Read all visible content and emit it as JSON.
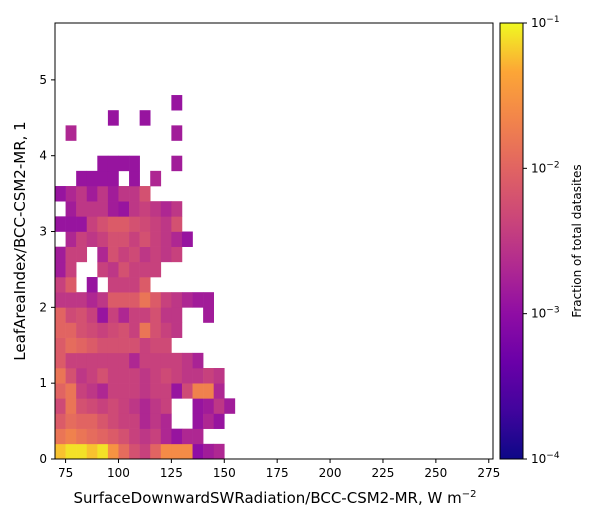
{
  "chart_data": {
    "type": "heatmap",
    "xlabel": "SurfaceDownwardSWRadiation/BCC-CSM2-MR,  W m",
    "xlabel_sup": "−2",
    "ylabel": "LeafAreaIndex/BCC-CSM2-MR,  1",
    "xlim": [
      70,
      277
    ],
    "ylim": [
      0,
      5.75
    ],
    "x_ticks": [
      "75",
      "100",
      "125",
      "150",
      "175",
      "200",
      "225",
      "250",
      "275"
    ],
    "y_ticks": [
      "0",
      "1",
      "2",
      "3",
      "4",
      "5"
    ],
    "bin_width_x": 5,
    "bin_height_y": 0.2,
    "colorbar": {
      "label": "Fraction of total datasites",
      "scale": "log",
      "range": [
        0.0001,
        0.1
      ],
      "ticks": [
        {
          "base": "10",
          "exp": "−1",
          "value": 0.1
        },
        {
          "base": "10",
          "exp": "−2",
          "value": 0.01
        },
        {
          "base": "10",
          "exp": "−3",
          "value": 0.001
        },
        {
          "base": "10",
          "exp": "−4",
          "value": 0.0001
        }
      ],
      "colormap": "plasma"
    },
    "cells": [
      {
        "x": 70,
        "y": 0.0,
        "v": 0.06
      },
      {
        "x": 75,
        "y": 0.0,
        "v": 0.08
      },
      {
        "x": 80,
        "y": 0.0,
        "v": 0.08
      },
      {
        "x": 85,
        "y": 0.0,
        "v": 0.06
      },
      {
        "x": 90,
        "y": 0.0,
        "v": 0.08
      },
      {
        "x": 95,
        "y": 0.0,
        "v": 0.03
      },
      {
        "x": 100,
        "y": 0.0,
        "v": 0.012
      },
      {
        "x": 105,
        "y": 0.0,
        "v": 0.006
      },
      {
        "x": 110,
        "y": 0.0,
        "v": 0.004
      },
      {
        "x": 115,
        "y": 0.0,
        "v": 0.01
      },
      {
        "x": 120,
        "y": 0.0,
        "v": 0.025
      },
      {
        "x": 125,
        "y": 0.0,
        "v": 0.025
      },
      {
        "x": 130,
        "y": 0.0,
        "v": 0.025
      },
      {
        "x": 135,
        "y": 0.0,
        "v": 0.001
      },
      {
        "x": 140,
        "y": 0.0,
        "v": 0.0015
      },
      {
        "x": 145,
        "y": 0.0,
        "v": 0.002
      },
      {
        "x": 70,
        "y": 0.2,
        "v": 0.015
      },
      {
        "x": 75,
        "y": 0.2,
        "v": 0.02
      },
      {
        "x": 80,
        "y": 0.2,
        "v": 0.015
      },
      {
        "x": 85,
        "y": 0.2,
        "v": 0.012
      },
      {
        "x": 90,
        "y": 0.2,
        "v": 0.01
      },
      {
        "x": 95,
        "y": 0.2,
        "v": 0.008
      },
      {
        "x": 100,
        "y": 0.2,
        "v": 0.006
      },
      {
        "x": 105,
        "y": 0.2,
        "v": 0.004
      },
      {
        "x": 110,
        "y": 0.2,
        "v": 0.003
      },
      {
        "x": 115,
        "y": 0.2,
        "v": 0.004
      },
      {
        "x": 120,
        "y": 0.2,
        "v": 0.002
      },
      {
        "x": 125,
        "y": 0.2,
        "v": 0.0012
      },
      {
        "x": 130,
        "y": 0.2,
        "v": 0.002
      },
      {
        "x": 135,
        "y": 0.2,
        "v": 0.002
      },
      {
        "x": 70,
        "y": 0.4,
        "v": 0.008
      },
      {
        "x": 75,
        "y": 0.4,
        "v": 0.012
      },
      {
        "x": 80,
        "y": 0.4,
        "v": 0.01
      },
      {
        "x": 85,
        "y": 0.4,
        "v": 0.01
      },
      {
        "x": 90,
        "y": 0.4,
        "v": 0.007
      },
      {
        "x": 95,
        "y": 0.4,
        "v": 0.005
      },
      {
        "x": 100,
        "y": 0.4,
        "v": 0.004
      },
      {
        "x": 105,
        "y": 0.4,
        "v": 0.004
      },
      {
        "x": 110,
        "y": 0.4,
        "v": 0.002
      },
      {
        "x": 115,
        "y": 0.4,
        "v": 0.003
      },
      {
        "x": 120,
        "y": 0.4,
        "v": 0.002
      },
      {
        "x": 135,
        "y": 0.4,
        "v": 0.0012
      },
      {
        "x": 140,
        "y": 0.4,
        "v": 0.002
      },
      {
        "x": 145,
        "y": 0.4,
        "v": 0.0012
      },
      {
        "x": 70,
        "y": 0.6,
        "v": 0.005
      },
      {
        "x": 75,
        "y": 0.6,
        "v": 0.015
      },
      {
        "x": 80,
        "y": 0.6,
        "v": 0.006
      },
      {
        "x": 85,
        "y": 0.6,
        "v": 0.005
      },
      {
        "x": 90,
        "y": 0.6,
        "v": 0.004
      },
      {
        "x": 95,
        "y": 0.6,
        "v": 0.005
      },
      {
        "x": 100,
        "y": 0.6,
        "v": 0.004
      },
      {
        "x": 105,
        "y": 0.6,
        "v": 0.003
      },
      {
        "x": 110,
        "y": 0.6,
        "v": 0.002
      },
      {
        "x": 115,
        "y": 0.6,
        "v": 0.003
      },
      {
        "x": 120,
        "y": 0.6,
        "v": 0.004
      },
      {
        "x": 135,
        "y": 0.6,
        "v": 0.0012
      },
      {
        "x": 140,
        "y": 0.6,
        "v": 0.0015
      },
      {
        "x": 145,
        "y": 0.6,
        "v": 0.003
      },
      {
        "x": 150,
        "y": 0.6,
        "v": 0.0015
      },
      {
        "x": 70,
        "y": 0.8,
        "v": 0.01
      },
      {
        "x": 75,
        "y": 0.8,
        "v": 0.015
      },
      {
        "x": 80,
        "y": 0.8,
        "v": 0.004
      },
      {
        "x": 85,
        "y": 0.8,
        "v": 0.003
      },
      {
        "x": 90,
        "y": 0.8,
        "v": 0.002
      },
      {
        "x": 95,
        "y": 0.8,
        "v": 0.004
      },
      {
        "x": 100,
        "y": 0.8,
        "v": 0.004
      },
      {
        "x": 105,
        "y": 0.8,
        "v": 0.004
      },
      {
        "x": 110,
        "y": 0.8,
        "v": 0.003
      },
      {
        "x": 115,
        "y": 0.8,
        "v": 0.004
      },
      {
        "x": 120,
        "y": 0.8,
        "v": 0.004
      },
      {
        "x": 125,
        "y": 0.8,
        "v": 0.0012
      },
      {
        "x": 130,
        "y": 0.8,
        "v": 0.005
      },
      {
        "x": 135,
        "y": 0.8,
        "v": 0.02
      },
      {
        "x": 140,
        "y": 0.8,
        "v": 0.02
      },
      {
        "x": 145,
        "y": 0.8,
        "v": 0.002
      },
      {
        "x": 70,
        "y": 1.0,
        "v": 0.015
      },
      {
        "x": 75,
        "y": 1.0,
        "v": 0.006
      },
      {
        "x": 80,
        "y": 1.0,
        "v": 0.003
      },
      {
        "x": 85,
        "y": 1.0,
        "v": 0.004
      },
      {
        "x": 90,
        "y": 1.0,
        "v": 0.006
      },
      {
        "x": 95,
        "y": 1.0,
        "v": 0.004
      },
      {
        "x": 100,
        "y": 1.0,
        "v": 0.004
      },
      {
        "x": 105,
        "y": 1.0,
        "v": 0.004
      },
      {
        "x": 110,
        "y": 1.0,
        "v": 0.003
      },
      {
        "x": 115,
        "y": 1.0,
        "v": 0.004
      },
      {
        "x": 120,
        "y": 1.0,
        "v": 0.005
      },
      {
        "x": 125,
        "y": 1.0,
        "v": 0.004
      },
      {
        "x": 130,
        "y": 1.0,
        "v": 0.003
      },
      {
        "x": 135,
        "y": 1.0,
        "v": 0.003
      },
      {
        "x": 140,
        "y": 1.0,
        "v": 0.004
      },
      {
        "x": 145,
        "y": 1.0,
        "v": 0.003
      },
      {
        "x": 70,
        "y": 1.2,
        "v": 0.008
      },
      {
        "x": 75,
        "y": 1.2,
        "v": 0.004
      },
      {
        "x": 80,
        "y": 1.2,
        "v": 0.004
      },
      {
        "x": 85,
        "y": 1.2,
        "v": 0.004
      },
      {
        "x": 90,
        "y": 1.2,
        "v": 0.004
      },
      {
        "x": 95,
        "y": 1.2,
        "v": 0.004
      },
      {
        "x": 100,
        "y": 1.2,
        "v": 0.004
      },
      {
        "x": 105,
        "y": 1.2,
        "v": 0.002
      },
      {
        "x": 110,
        "y": 1.2,
        "v": 0.004
      },
      {
        "x": 115,
        "y": 1.2,
        "v": 0.004
      },
      {
        "x": 120,
        "y": 1.2,
        "v": 0.004
      },
      {
        "x": 125,
        "y": 1.2,
        "v": 0.004
      },
      {
        "x": 130,
        "y": 1.2,
        "v": 0.003
      },
      {
        "x": 135,
        "y": 1.2,
        "v": 0.0018
      },
      {
        "x": 70,
        "y": 1.4,
        "v": 0.008
      },
      {
        "x": 75,
        "y": 1.4,
        "v": 0.012
      },
      {
        "x": 80,
        "y": 1.4,
        "v": 0.01
      },
      {
        "x": 85,
        "y": 1.4,
        "v": 0.008
      },
      {
        "x": 90,
        "y": 1.4,
        "v": 0.006
      },
      {
        "x": 95,
        "y": 1.4,
        "v": 0.006
      },
      {
        "x": 100,
        "y": 1.4,
        "v": 0.006
      },
      {
        "x": 105,
        "y": 1.4,
        "v": 0.006
      },
      {
        "x": 110,
        "y": 1.4,
        "v": 0.004
      },
      {
        "x": 115,
        "y": 1.4,
        "v": 0.005
      },
      {
        "x": 120,
        "y": 1.4,
        "v": 0.005
      },
      {
        "x": 70,
        "y": 1.6,
        "v": 0.01
      },
      {
        "x": 75,
        "y": 1.6,
        "v": 0.01
      },
      {
        "x": 80,
        "y": 1.6,
        "v": 0.006
      },
      {
        "x": 85,
        "y": 1.6,
        "v": 0.005
      },
      {
        "x": 90,
        "y": 1.6,
        "v": 0.004
      },
      {
        "x": 95,
        "y": 1.6,
        "v": 0.005
      },
      {
        "x": 100,
        "y": 1.6,
        "v": 0.006
      },
      {
        "x": 105,
        "y": 1.6,
        "v": 0.004
      },
      {
        "x": 110,
        "y": 1.6,
        "v": 0.015
      },
      {
        "x": 115,
        "y": 1.6,
        "v": 0.006
      },
      {
        "x": 120,
        "y": 1.6,
        "v": 0.004
      },
      {
        "x": 125,
        "y": 1.6,
        "v": 0.003
      },
      {
        "x": 70,
        "y": 1.8,
        "v": 0.01
      },
      {
        "x": 75,
        "y": 1.8,
        "v": 0.005
      },
      {
        "x": 80,
        "y": 1.8,
        "v": 0.006
      },
      {
        "x": 85,
        "y": 1.8,
        "v": 0.004
      },
      {
        "x": 90,
        "y": 1.8,
        "v": 0.0012
      },
      {
        "x": 95,
        "y": 1.8,
        "v": 0.004
      },
      {
        "x": 100,
        "y": 1.8,
        "v": 0.002
      },
      {
        "x": 105,
        "y": 1.8,
        "v": 0.004
      },
      {
        "x": 110,
        "y": 1.8,
        "v": 0.004
      },
      {
        "x": 115,
        "y": 1.8,
        "v": 0.006
      },
      {
        "x": 120,
        "y": 1.8,
        "v": 0.003
      },
      {
        "x": 125,
        "y": 1.8,
        "v": 0.003
      },
      {
        "x": 140,
        "y": 1.8,
        "v": 0.0015
      },
      {
        "x": 70,
        "y": 2.0,
        "v": 0.003
      },
      {
        "x": 75,
        "y": 2.0,
        "v": 0.003
      },
      {
        "x": 80,
        "y": 2.0,
        "v": 0.003
      },
      {
        "x": 85,
        "y": 2.0,
        "v": 0.002
      },
      {
        "x": 90,
        "y": 2.0,
        "v": 0.003
      },
      {
        "x": 95,
        "y": 2.0,
        "v": 0.008
      },
      {
        "x": 100,
        "y": 2.0,
        "v": 0.008
      },
      {
        "x": 105,
        "y": 2.0,
        "v": 0.008
      },
      {
        "x": 110,
        "y": 2.0,
        "v": 0.015
      },
      {
        "x": 115,
        "y": 2.0,
        "v": 0.008
      },
      {
        "x": 120,
        "y": 2.0,
        "v": 0.004
      },
      {
        "x": 125,
        "y": 2.0,
        "v": 0.003
      },
      {
        "x": 130,
        "y": 2.0,
        "v": 0.002
      },
      {
        "x": 135,
        "y": 2.0,
        "v": 0.0015
      },
      {
        "x": 140,
        "y": 2.0,
        "v": 0.0015
      },
      {
        "x": 70,
        "y": 2.2,
        "v": 0.004
      },
      {
        "x": 75,
        "y": 2.2,
        "v": 0.008
      },
      {
        "x": 85,
        "y": 2.2,
        "v": 0.0012
      },
      {
        "x": 95,
        "y": 2.2,
        "v": 0.004
      },
      {
        "x": 100,
        "y": 2.2,
        "v": 0.004
      },
      {
        "x": 105,
        "y": 2.2,
        "v": 0.004
      },
      {
        "x": 110,
        "y": 2.2,
        "v": 0.008
      },
      {
        "x": 70,
        "y": 2.4,
        "v": 0.0015
      },
      {
        "x": 75,
        "y": 2.4,
        "v": 0.004
      },
      {
        "x": 90,
        "y": 2.4,
        "v": 0.004
      },
      {
        "x": 95,
        "y": 2.4,
        "v": 0.003
      },
      {
        "x": 100,
        "y": 2.4,
        "v": 0.006
      },
      {
        "x": 105,
        "y": 2.4,
        "v": 0.004
      },
      {
        "x": 110,
        "y": 2.4,
        "v": 0.004
      },
      {
        "x": 115,
        "y": 2.4,
        "v": 0.004
      },
      {
        "x": 70,
        "y": 2.6,
        "v": 0.0015
      },
      {
        "x": 75,
        "y": 2.6,
        "v": 0.004
      },
      {
        "x": 80,
        "y": 2.6,
        "v": 0.004
      },
      {
        "x": 90,
        "y": 2.6,
        "v": 0.002
      },
      {
        "x": 95,
        "y": 2.6,
        "v": 0.006
      },
      {
        "x": 100,
        "y": 2.6,
        "v": 0.004
      },
      {
        "x": 105,
        "y": 2.6,
        "v": 0.005
      },
      {
        "x": 110,
        "y": 2.6,
        "v": 0.003
      },
      {
        "x": 115,
        "y": 2.6,
        "v": 0.004
      },
      {
        "x": 120,
        "y": 2.6,
        "v": 0.003
      },
      {
        "x": 125,
        "y": 2.6,
        "v": 0.004
      },
      {
        "x": 75,
        "y": 2.8,
        "v": 0.002
      },
      {
        "x": 80,
        "y": 2.8,
        "v": 0.004
      },
      {
        "x": 85,
        "y": 2.8,
        "v": 0.003
      },
      {
        "x": 90,
        "y": 2.8,
        "v": 0.004
      },
      {
        "x": 95,
        "y": 2.8,
        "v": 0.006
      },
      {
        "x": 100,
        "y": 2.8,
        "v": 0.006
      },
      {
        "x": 105,
        "y": 2.8,
        "v": 0.004
      },
      {
        "x": 110,
        "y": 2.8,
        "v": 0.006
      },
      {
        "x": 115,
        "y": 2.8,
        "v": 0.004
      },
      {
        "x": 120,
        "y": 2.8,
        "v": 0.003
      },
      {
        "x": 125,
        "y": 2.8,
        "v": 0.002
      },
      {
        "x": 130,
        "y": 2.8,
        "v": 0.0012
      },
      {
        "x": 70,
        "y": 3.0,
        "v": 0.0012
      },
      {
        "x": 75,
        "y": 3.0,
        "v": 0.0012
      },
      {
        "x": 80,
        "y": 3.0,
        "v": 0.0012
      },
      {
        "x": 85,
        "y": 3.0,
        "v": 0.004
      },
      {
        "x": 90,
        "y": 3.0,
        "v": 0.006
      },
      {
        "x": 95,
        "y": 3.0,
        "v": 0.008
      },
      {
        "x": 100,
        "y": 3.0,
        "v": 0.008
      },
      {
        "x": 105,
        "y": 3.0,
        "v": 0.006
      },
      {
        "x": 110,
        "y": 3.0,
        "v": 0.005
      },
      {
        "x": 115,
        "y": 3.0,
        "v": 0.004
      },
      {
        "x": 120,
        "y": 3.0,
        "v": 0.003
      },
      {
        "x": 125,
        "y": 3.0,
        "v": 0.006
      },
      {
        "x": 75,
        "y": 3.2,
        "v": 0.0015
      },
      {
        "x": 80,
        "y": 3.2,
        "v": 0.003
      },
      {
        "x": 85,
        "y": 3.2,
        "v": 0.003
      },
      {
        "x": 90,
        "y": 3.2,
        "v": 0.003
      },
      {
        "x": 95,
        "y": 3.2,
        "v": 0.0015
      },
      {
        "x": 100,
        "y": 3.2,
        "v": 0.0012
      },
      {
        "x": 105,
        "y": 3.2,
        "v": 0.003
      },
      {
        "x": 110,
        "y": 3.2,
        "v": 0.004
      },
      {
        "x": 115,
        "y": 3.2,
        "v": 0.003
      },
      {
        "x": 120,
        "y": 3.2,
        "v": 0.002
      },
      {
        "x": 125,
        "y": 3.2,
        "v": 0.003
      },
      {
        "x": 75,
        "y": 3.4,
        "v": 0.002
      },
      {
        "x": 80,
        "y": 3.4,
        "v": 0.003
      },
      {
        "x": 85,
        "y": 3.4,
        "v": 0.0015
      },
      {
        "x": 90,
        "y": 3.4,
        "v": 0.003
      },
      {
        "x": 95,
        "y": 3.4,
        "v": 0.0015
      },
      {
        "x": 100,
        "y": 3.4,
        "v": 0.003
      },
      {
        "x": 105,
        "y": 3.4,
        "v": 0.003
      },
      {
        "x": 110,
        "y": 3.4,
        "v": 0.006
      },
      {
        "x": 80,
        "y": 3.6,
        "v": 0.0012
      },
      {
        "x": 85,
        "y": 3.6,
        "v": 0.0012
      },
      {
        "x": 90,
        "y": 3.6,
        "v": 0.0012
      },
      {
        "x": 95,
        "y": 3.6,
        "v": 0.0012
      },
      {
        "x": 105,
        "y": 3.6,
        "v": 0.0012
      },
      {
        "x": 115,
        "y": 3.6,
        "v": 0.002
      },
      {
        "x": 90,
        "y": 3.8,
        "v": 0.0012
      },
      {
        "x": 95,
        "y": 3.8,
        "v": 0.0012
      },
      {
        "x": 100,
        "y": 3.8,
        "v": 0.0012
      },
      {
        "x": 105,
        "y": 3.8,
        "v": 0.0012
      },
      {
        "x": 125,
        "y": 3.8,
        "v": 0.0015
      },
      {
        "x": 75,
        "y": 4.2,
        "v": 0.002
      },
      {
        "x": 125,
        "y": 4.2,
        "v": 0.0015
      },
      {
        "x": 95,
        "y": 4.4,
        "v": 0.0012
      },
      {
        "x": 110,
        "y": 4.4,
        "v": 0.0012
      },
      {
        "x": 125,
        "y": 4.6,
        "v": 0.0012
      },
      {
        "x": 70,
        "y": 3.4,
        "v": 0.0012
      }
    ]
  }
}
